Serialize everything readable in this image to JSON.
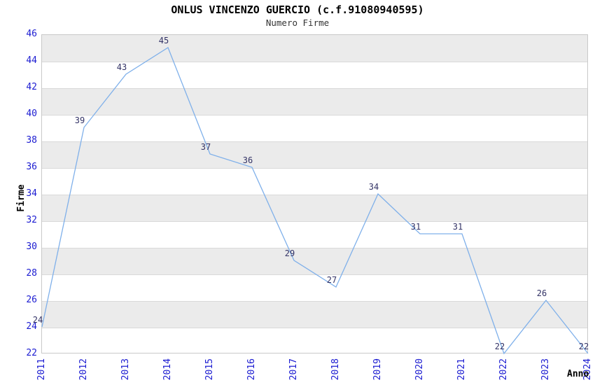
{
  "header": {
    "title": "ONLUS VINCENZO GUERCIO (c.f.91080940595)",
    "subtitle": "Numero Firme"
  },
  "chart_data": {
    "type": "line",
    "title": "ONLUS VINCENZO GUERCIO (c.f.91080940595)",
    "subtitle": "Numero Firme",
    "xlabel": "Anno",
    "ylabel": "Firme",
    "x": [
      2011,
      2012,
      2013,
      2014,
      2015,
      2016,
      2017,
      2018,
      2019,
      2020,
      2021,
      2022,
      2023,
      2024
    ],
    "series": [
      {
        "name": "Numero Firme",
        "values": [
          24,
          39,
          43,
          45,
          37,
          36,
          29,
          27,
          34,
          31,
          31,
          22,
          26,
          22
        ]
      }
    ],
    "ylim": [
      22,
      46
    ],
    "ytick_step": 2,
    "yticks": [
      22,
      24,
      26,
      28,
      30,
      32,
      34,
      36,
      38,
      40,
      42,
      44,
      46
    ],
    "grid": "alternating horizontal bands, gray on even 2-unit intervals starting 24-26",
    "legend": "none",
    "point_labels": true,
    "x_tick_rotation_deg": 90,
    "colors": {
      "line": "#7fb0ea",
      "tick_label": "#1b1bd1",
      "data_label": "#333366",
      "band_gray": "#ebebeb",
      "gridline": "#d9d9d9",
      "plot_border": "#c9c9c9",
      "title": "#000000",
      "subtitle": "#333333",
      "axis_title": "#000000",
      "background": "#ffffff"
    }
  }
}
